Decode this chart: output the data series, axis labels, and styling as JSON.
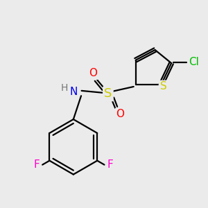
{
  "bg_color": "#ebebeb",
  "bond_color": "#000000",
  "bond_width": 1.6,
  "atom_colors": {
    "S_sulfo": "#cccc00",
    "S_thio": "#cccc00",
    "N": "#0000ee",
    "O": "#ff0000",
    "F": "#ff00cc",
    "Cl": "#00bb00",
    "H": "#777777",
    "C": "#000000"
  },
  "font_size": 10,
  "fig_width": 3.0,
  "fig_height": 3.0,
  "dpi": 100
}
